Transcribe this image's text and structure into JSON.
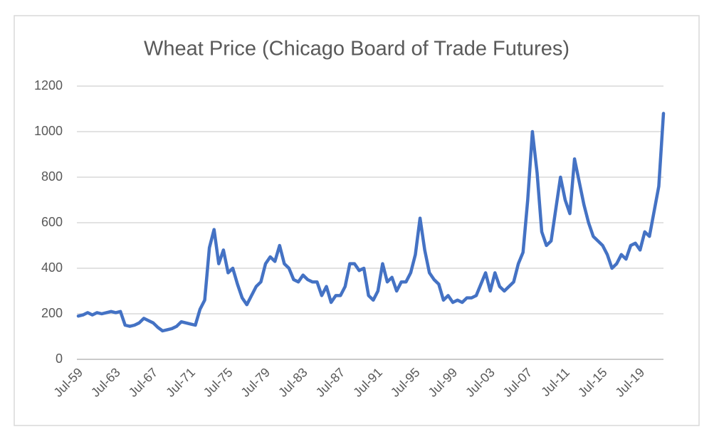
{
  "chart_data": {
    "type": "line",
    "title": "Wheat Price (Chicago Board of Trade Futures)",
    "categories": [
      "Jul-59",
      null,
      null,
      null,
      null,
      null,
      null,
      null,
      "Jul-63",
      null,
      null,
      null,
      null,
      null,
      null,
      null,
      "Jul-67",
      null,
      null,
      null,
      null,
      null,
      null,
      null,
      "Jul-71",
      null,
      null,
      null,
      null,
      null,
      null,
      null,
      "Jul-75",
      null,
      null,
      null,
      null,
      null,
      null,
      null,
      "Jul-79",
      null,
      null,
      null,
      null,
      null,
      null,
      null,
      "Jul-83",
      null,
      null,
      null,
      null,
      null,
      null,
      null,
      "Jul-87",
      null,
      null,
      null,
      null,
      null,
      null,
      null,
      "Jul-91",
      null,
      null,
      null,
      null,
      null,
      null,
      null,
      "Jul-95",
      null,
      null,
      null,
      null,
      null,
      null,
      null,
      "Jul-99",
      null,
      null,
      null,
      null,
      null,
      null,
      null,
      "Jul-03",
      null,
      null,
      null,
      null,
      null,
      null,
      null,
      "Jul-07",
      null,
      null,
      null,
      null,
      null,
      null,
      null,
      "Jul-11",
      null,
      null,
      null,
      null,
      null,
      null,
      null,
      "Jul-15",
      null,
      null,
      null,
      null,
      null,
      null,
      null,
      "Jul-19",
      null,
      null,
      null,
      null,
      null
    ],
    "series": [
      {
        "color": "#4472c4",
        "values": [
          190,
          195,
          205,
          195,
          205,
          200,
          205,
          210,
          205,
          210,
          150,
          145,
          150,
          160,
          180,
          170,
          160,
          140,
          125,
          130,
          135,
          145,
          165,
          160,
          155,
          150,
          220,
          260,
          490,
          570,
          420,
          480,
          380,
          400,
          330,
          270,
          240,
          280,
          320,
          340,
          420,
          450,
          430,
          500,
          420,
          400,
          350,
          340,
          370,
          350,
          340,
          340,
          280,
          320,
          250,
          280,
          280,
          320,
          420,
          420,
          390,
          400,
          280,
          260,
          300,
          420,
          340,
          360,
          300,
          340,
          340,
          380,
          460,
          620,
          480,
          380,
          350,
          330,
          260,
          280,
          250,
          260,
          250,
          270,
          270,
          280,
          330,
          380,
          300,
          380,
          320,
          300,
          320,
          340,
          420,
          470,
          700,
          1000,
          820,
          560,
          500,
          520,
          660,
          800,
          700,
          640,
          880,
          780,
          680,
          600,
          540,
          520,
          500,
          460,
          400,
          420,
          460,
          440,
          500,
          510,
          480,
          560,
          540,
          650,
          760,
          1080
        ]
      }
    ],
    "ylim": [
      0,
      1200
    ],
    "yticks": [
      0,
      200,
      400,
      600,
      800,
      1000,
      1200
    ],
    "grid": true
  }
}
